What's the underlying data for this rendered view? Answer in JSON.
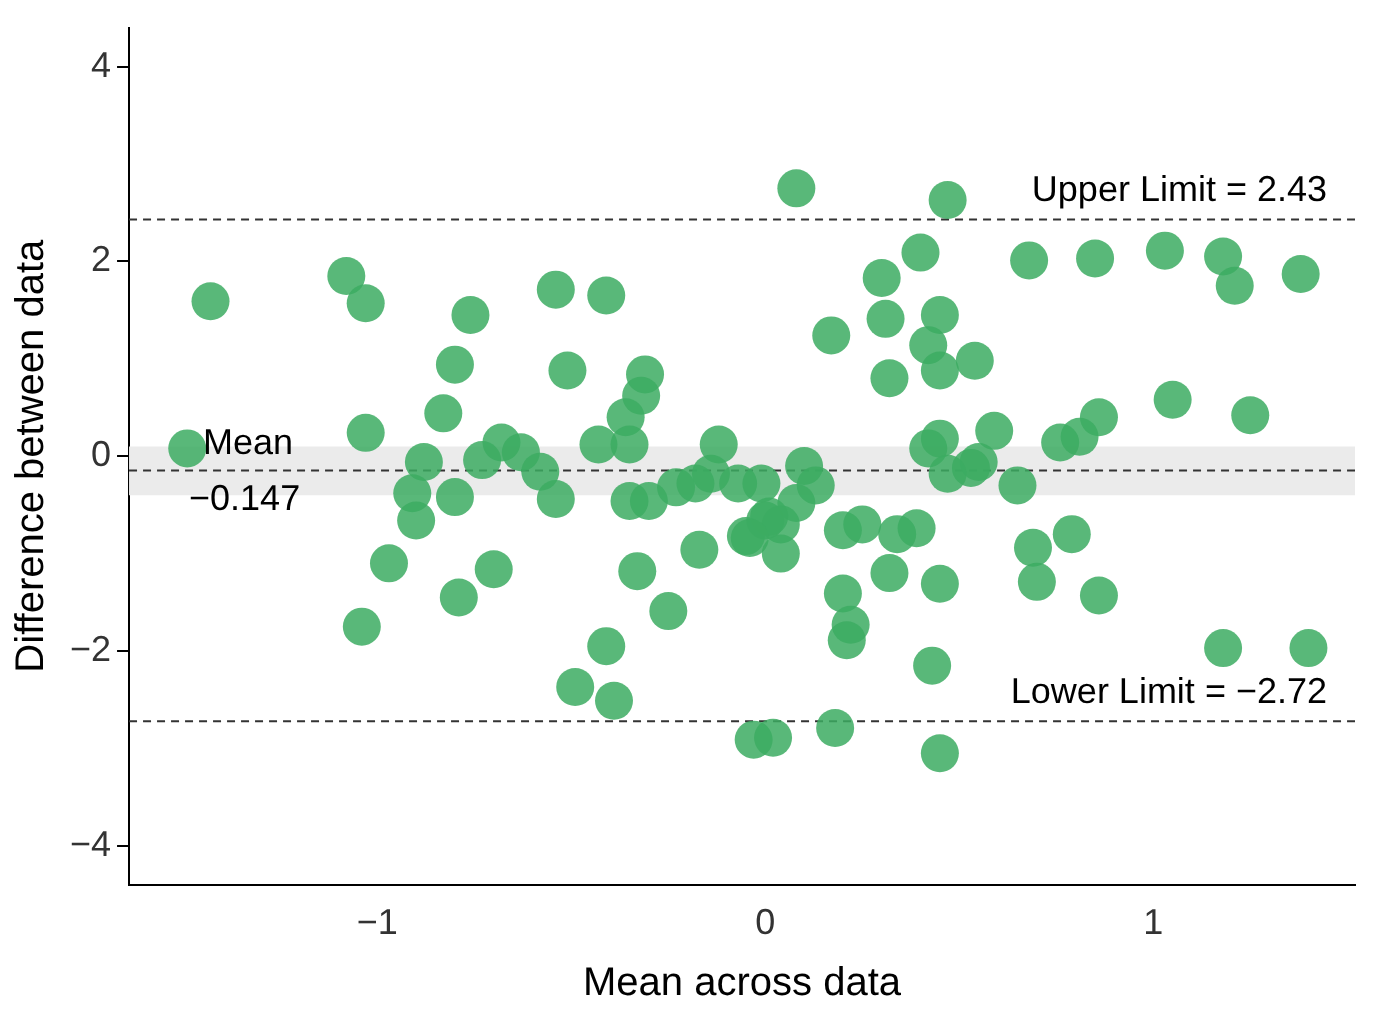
{
  "chart_data": {
    "type": "scatter",
    "xlabel": "Mean across data",
    "ylabel": "Difference between data",
    "xlim": [
      -1.64,
      1.52
    ],
    "ylim": [
      -4.4,
      4.4
    ],
    "xticks": [
      -1,
      0,
      1
    ],
    "yticks": [
      -4,
      -2,
      0,
      2,
      4
    ],
    "grid": false,
    "legend": false,
    "marker": "circle",
    "series": [
      {
        "color": "#3cac62",
        "x": [
          -1.43,
          -1.08,
          -1.03,
          -0.76,
          -0.54,
          -0.41,
          -0.8,
          -0.51,
          -0.31,
          -0.32,
          -0.36,
          -0.83,
          -1.49,
          -1.03,
          -0.43,
          -0.35,
          -0.12,
          -0.68,
          -0.63,
          -0.88,
          -0.73,
          -0.58,
          -0.54,
          -0.91,
          -0.8,
          -0.9,
          -0.35,
          -0.3,
          -0.23,
          -0.18,
          -0.14,
          -0.07,
          -0.01,
          -0.05,
          0.0,
          -0.17,
          -0.33,
          -0.97,
          -0.7,
          -0.79,
          -0.25,
          -1.04,
          -0.41,
          -0.49,
          -0.39,
          -0.03,
          0.02,
          0.08,
          0.47,
          0.4,
          0.3,
          0.68,
          0.85,
          1.03,
          1.18,
          1.21,
          1.38,
          0.17,
          0.31,
          0.45,
          0.42,
          0.54,
          0.45,
          0.32,
          1.05,
          1.25,
          0.86,
          0.59,
          0.81,
          0.76,
          0.45,
          0.42,
          0.55,
          0.53,
          0.47,
          0.65,
          0.1,
          0.13,
          0.08,
          0.04,
          0.01,
          -0.04,
          0.04,
          0.2,
          0.25,
          0.34,
          0.39,
          0.69,
          0.79,
          0.32,
          0.45,
          0.7,
          0.86,
          0.2,
          0.22,
          0.21,
          1.18,
          1.4,
          0.43,
          0.18,
          0.45
        ],
        "values": [
          1.59,
          1.85,
          1.57,
          1.45,
          1.71,
          1.65,
          0.94,
          0.88,
          0.84,
          0.62,
          0.4,
          0.44,
          0.08,
          0.24,
          0.12,
          0.12,
          0.12,
          0.14,
          0.04,
          -0.06,
          -0.04,
          -0.16,
          -0.44,
          -0.38,
          -0.42,
          -0.66,
          -0.46,
          -0.46,
          -0.32,
          -0.28,
          -0.18,
          -0.28,
          -0.28,
          -0.82,
          -0.66,
          -0.96,
          -1.18,
          -1.1,
          -1.16,
          -1.45,
          -1.59,
          -1.75,
          -1.95,
          -2.37,
          -2.51,
          -2.91,
          -2.89,
          2.75,
          2.63,
          2.09,
          1.83,
          2.01,
          2.03,
          2.11,
          2.05,
          1.75,
          1.87,
          1.24,
          1.41,
          1.45,
          1.14,
          0.98,
          0.88,
          0.8,
          0.58,
          0.42,
          0.4,
          0.26,
          0.2,
          0.14,
          0.18,
          0.08,
          -0.06,
          -0.12,
          -0.18,
          -0.3,
          -0.1,
          -0.3,
          -0.48,
          -0.7,
          -0.62,
          -0.84,
          -1.0,
          -0.76,
          -0.7,
          -0.8,
          -0.74,
          -0.94,
          -0.8,
          -1.2,
          -1.31,
          -1.29,
          -1.43,
          -1.41,
          -1.73,
          -1.89,
          -1.97,
          -1.97,
          -2.15,
          -2.79,
          -3.05
        ]
      }
    ],
    "ref_lines": [
      {
        "axis": "y",
        "value": 2.43,
        "label": "Upper Limit = 2.43",
        "color": "#333333",
        "line_style": "dashed"
      },
      {
        "axis": "y",
        "value": -0.147,
        "label": "Mean\n−0.147",
        "color": "#333333",
        "line_style": "dashed"
      },
      {
        "axis": "y",
        "value": -2.72,
        "label": "Lower Limit = −2.72",
        "color": "#333333",
        "line_style": "dashed"
      }
    ],
    "bands": [
      {
        "axis": "y",
        "from": -0.4,
        "to": 0.1,
        "color": "#ebebeb"
      }
    ]
  }
}
